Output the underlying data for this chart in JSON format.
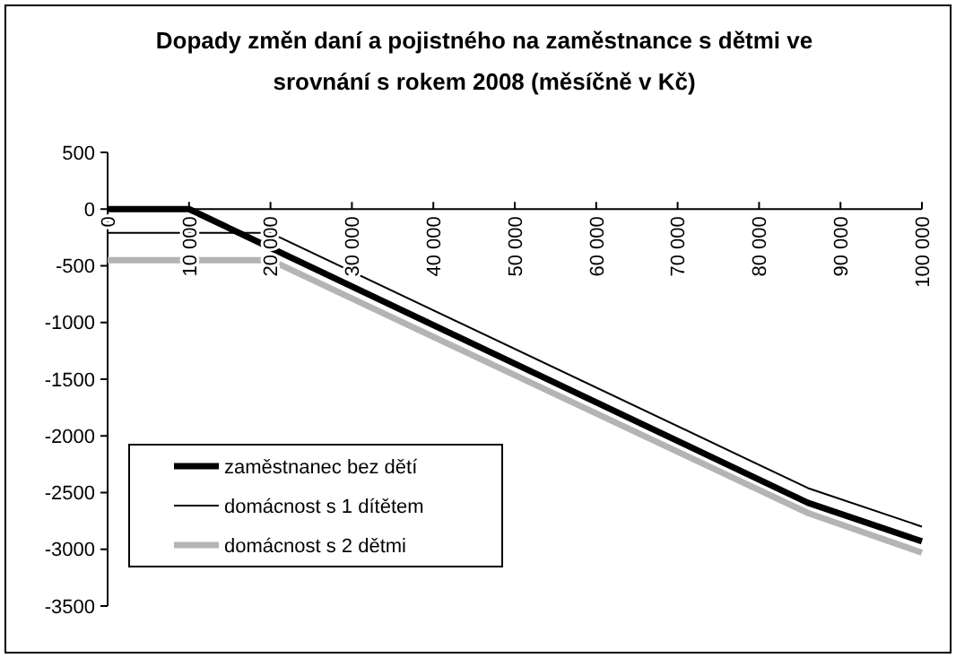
{
  "chart_data": {
    "type": "line",
    "title": "Dopady změn daní a pojistného na zaměstnance s dětmi ve srovnání s rokem 2008 (měsíčně v Kč)",
    "xlim": [
      0,
      100000
    ],
    "xticks": [
      {
        "value": 0,
        "label": "0"
      },
      {
        "value": 10000,
        "label": "10 000"
      },
      {
        "value": 20000,
        "label": "20 000"
      },
      {
        "value": 30000,
        "label": "30 000"
      },
      {
        "value": 40000,
        "label": "40 000"
      },
      {
        "value": 50000,
        "label": "50 000"
      },
      {
        "value": 60000,
        "label": "60 000"
      },
      {
        "value": 70000,
        "label": "70 000"
      },
      {
        "value": 80000,
        "label": "80 000"
      },
      {
        "value": 90000,
        "label": "90 000"
      },
      {
        "value": 100000,
        "label": "100 000"
      }
    ],
    "ylim": [
      -3500,
      500
    ],
    "yticks": [
      -3500,
      -3000,
      -2500,
      -2000,
      -1500,
      -1000,
      -500,
      0,
      500
    ],
    "grid": false,
    "legend": "bottom left",
    "line_style": "solid",
    "series": [
      {
        "name": "zaměstnanec bez dětí",
        "color": "#000000",
        "x": [
          0,
          10000,
          86000,
          100000
        ],
        "values": [
          0,
          0,
          -2590,
          -2930
        ]
      },
      {
        "name": "domácnost s 1 dítětem",
        "color": "#000000",
        "x": [
          0,
          20000,
          86000,
          100000
        ],
        "values": [
          -210,
          -210,
          -2460,
          -2800
        ]
      },
      {
        "name": "domácnost s 2 dětmi",
        "color": "#b4b4b4",
        "x": [
          0,
          20000,
          86000,
          100000
        ],
        "values": [
          -450,
          -450,
          -2680,
          -3030
        ]
      }
    ]
  }
}
